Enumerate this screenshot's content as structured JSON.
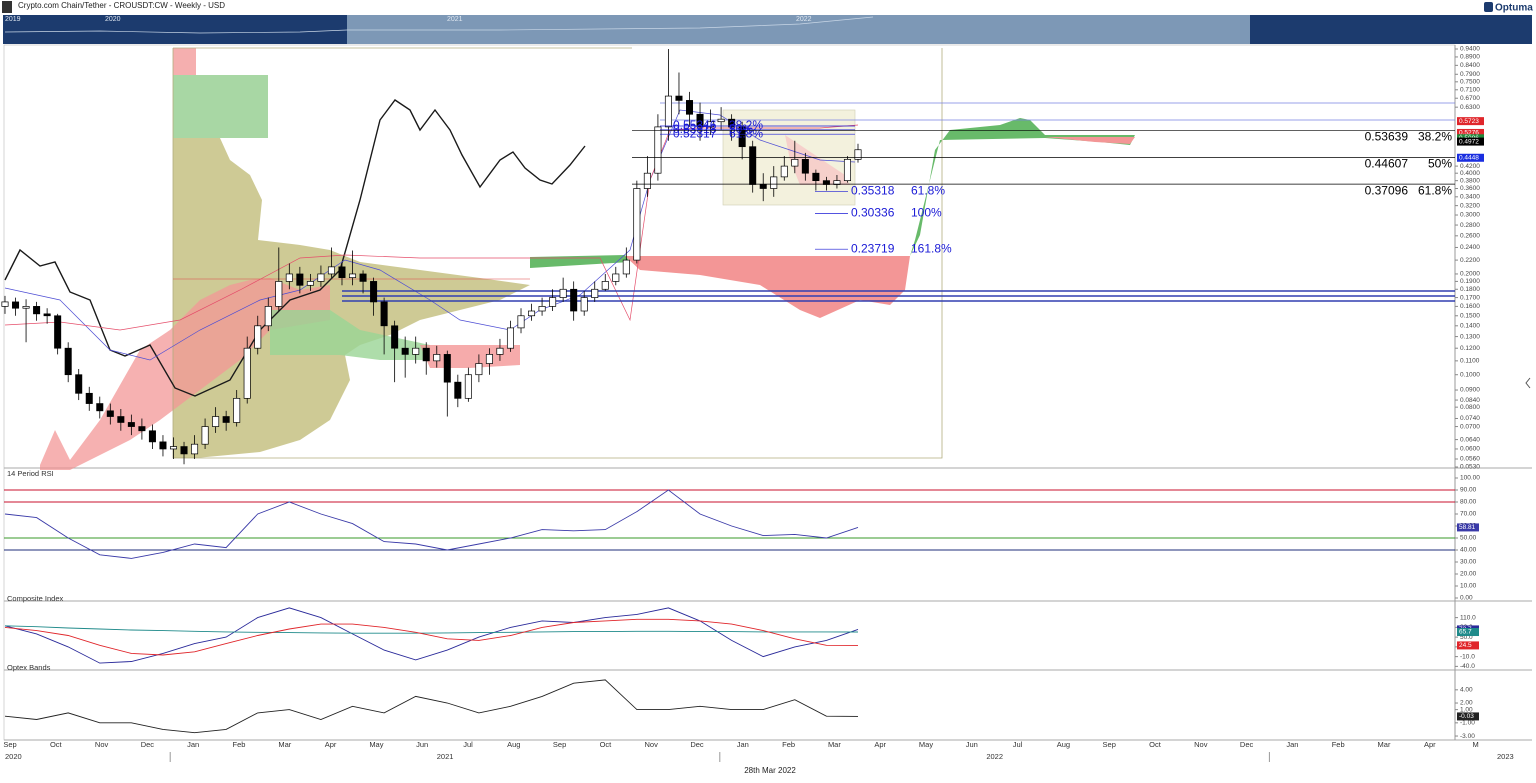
{
  "header": {
    "title": "Crypto.com Chain/Tether - CROUSDT:CW - Weekly - USD",
    "logo": "Optuma",
    "navigator_years": [
      "2019",
      "2020",
      "2021",
      "2022"
    ]
  },
  "chart_data": [
    {
      "type": "candlestick",
      "log_scale": true,
      "ylim": [
        0.053,
        0.94
      ],
      "up_color": "#ffffff",
      "down_color": "#000000",
      "outline_color": "#000000",
      "yticks": [
        {
          "value": 0.94,
          "label": "0.9400"
        },
        {
          "value": 0.89,
          "label": "0.8900"
        },
        {
          "value": 0.84,
          "label": "0.8400"
        },
        {
          "value": 0.79,
          "label": "0.7900"
        },
        {
          "value": 0.75,
          "label": "0.7500"
        },
        {
          "value": 0.71,
          "label": "0.7100"
        },
        {
          "value": 0.67,
          "label": "0.6700"
        },
        {
          "value": 0.63,
          "label": "0.6300"
        },
        {
          "value": 0.42,
          "label": "0.4200"
        },
        {
          "value": 0.4,
          "label": "0.4000"
        },
        {
          "value": 0.38,
          "label": "0.3800"
        },
        {
          "value": 0.36,
          "label": "0.3600"
        },
        {
          "value": 0.34,
          "label": "0.3400"
        },
        {
          "value": 0.32,
          "label": "0.3200"
        },
        {
          "value": 0.3,
          "label": "0.3000"
        },
        {
          "value": 0.28,
          "label": "0.2800"
        },
        {
          "value": 0.26,
          "label": "0.2600"
        },
        {
          "value": 0.24,
          "label": "0.2400"
        },
        {
          "value": 0.22,
          "label": "0.2200"
        },
        {
          "value": 0.2,
          "label": "0.2000"
        },
        {
          "value": 0.19,
          "label": "0.1900"
        },
        {
          "value": 0.18,
          "label": "0.1800"
        },
        {
          "value": 0.17,
          "label": "0.1700"
        },
        {
          "value": 0.16,
          "label": "0.1600"
        },
        {
          "value": 0.15,
          "label": "0.1500"
        },
        {
          "value": 0.14,
          "label": "0.1400"
        },
        {
          "value": 0.13,
          "label": "0.1300"
        },
        {
          "value": 0.12,
          "label": "0.1200"
        },
        {
          "value": 0.11,
          "label": "0.1100"
        },
        {
          "value": 0.1,
          "label": "0.1000"
        },
        {
          "value": 0.09,
          "label": "0.0900"
        },
        {
          "value": 0.084,
          "label": "0.0840"
        },
        {
          "value": 0.08,
          "label": "0.0800"
        },
        {
          "value": 0.074,
          "label": "0.0740"
        },
        {
          "value": 0.07,
          "label": "0.0700"
        },
        {
          "value": 0.064,
          "label": "0.0640"
        },
        {
          "value": 0.06,
          "label": "0.0600"
        },
        {
          "value": 0.056,
          "label": "0.0560"
        },
        {
          "value": 0.053,
          "label": "0.0530"
        }
      ],
      "open": [
        0.16,
        0.165,
        0.158,
        0.16,
        0.152,
        0.15,
        0.12,
        0.1,
        0.088,
        0.082,
        0.078,
        0.075,
        0.072,
        0.07,
        0.068,
        0.063,
        0.06,
        0.061,
        0.058,
        0.062,
        0.07,
        0.075,
        0.072,
        0.085,
        0.12,
        0.14,
        0.16,
        0.19,
        0.2,
        0.185,
        0.19,
        0.2,
        0.21,
        0.195,
        0.2,
        0.19,
        0.165,
        0.14,
        0.12,
        0.115,
        0.12,
        0.11,
        0.115,
        0.095,
        0.085,
        0.1,
        0.108,
        0.115,
        0.12,
        0.138,
        0.15,
        0.155,
        0.16,
        0.17,
        0.18,
        0.155,
        0.17,
        0.18,
        0.19,
        0.2,
        0.22,
        0.36,
        0.4,
        0.55,
        0.68,
        0.66,
        0.6,
        0.55,
        0.57,
        0.58,
        0.55,
        0.48,
        0.37,
        0.36,
        0.39,
        0.42,
        0.44,
        0.4,
        0.38,
        0.37,
        0.38,
        0.44
      ],
      "high": [
        0.172,
        0.17,
        0.168,
        0.165,
        0.158,
        0.152,
        0.125,
        0.104,
        0.092,
        0.086,
        0.082,
        0.079,
        0.076,
        0.074,
        0.071,
        0.066,
        0.065,
        0.063,
        0.066,
        0.074,
        0.08,
        0.078,
        0.09,
        0.13,
        0.15,
        0.17,
        0.24,
        0.215,
        0.21,
        0.2,
        0.212,
        0.24,
        0.215,
        0.235,
        0.205,
        0.195,
        0.17,
        0.145,
        0.13,
        0.13,
        0.125,
        0.122,
        0.118,
        0.1,
        0.105,
        0.115,
        0.12,
        0.128,
        0.145,
        0.158,
        0.163,
        0.17,
        0.18,
        0.195,
        0.19,
        0.178,
        0.19,
        0.2,
        0.21,
        0.24,
        0.38,
        0.45,
        0.6,
        0.94,
        0.8,
        0.7,
        0.65,
        0.62,
        0.63,
        0.6,
        0.57,
        0.5,
        0.4,
        0.42,
        0.45,
        0.5,
        0.46,
        0.41,
        0.39,
        0.395,
        0.45,
        0.49
      ],
      "low": [
        0.152,
        0.15,
        0.125,
        0.145,
        0.142,
        0.115,
        0.095,
        0.084,
        0.078,
        0.074,
        0.071,
        0.068,
        0.066,
        0.064,
        0.06,
        0.057,
        0.056,
        0.054,
        0.056,
        0.06,
        0.067,
        0.068,
        0.07,
        0.082,
        0.115,
        0.135,
        0.155,
        0.18,
        0.175,
        0.178,
        0.183,
        0.195,
        0.185,
        0.185,
        0.175,
        0.15,
        0.115,
        0.095,
        0.098,
        0.108,
        0.1,
        0.105,
        0.075,
        0.08,
        0.083,
        0.095,
        0.1,
        0.11,
        0.117,
        0.133,
        0.145,
        0.15,
        0.155,
        0.165,
        0.145,
        0.15,
        0.165,
        0.178,
        0.185,
        0.195,
        0.215,
        0.34,
        0.38,
        0.5,
        0.6,
        0.55,
        0.5,
        0.52,
        0.54,
        0.5,
        0.44,
        0.35,
        0.33,
        0.34,
        0.38,
        0.4,
        0.38,
        0.355,
        0.355,
        0.36,
        0.375,
        0.43
      ],
      "close": [
        0.165,
        0.158,
        0.16,
        0.152,
        0.15,
        0.12,
        0.1,
        0.088,
        0.082,
        0.078,
        0.075,
        0.072,
        0.07,
        0.068,
        0.063,
        0.06,
        0.061,
        0.058,
        0.062,
        0.07,
        0.075,
        0.072,
        0.085,
        0.12,
        0.14,
        0.16,
        0.19,
        0.2,
        0.185,
        0.19,
        0.2,
        0.21,
        0.195,
        0.2,
        0.19,
        0.165,
        0.14,
        0.12,
        0.115,
        0.12,
        0.11,
        0.115,
        0.095,
        0.085,
        0.1,
        0.108,
        0.115,
        0.12,
        0.138,
        0.15,
        0.155,
        0.16,
        0.17,
        0.18,
        0.155,
        0.17,
        0.18,
        0.19,
        0.2,
        0.22,
        0.36,
        0.4,
        0.55,
        0.68,
        0.66,
        0.6,
        0.55,
        0.57,
        0.58,
        0.55,
        0.48,
        0.37,
        0.36,
        0.39,
        0.42,
        0.44,
        0.4,
        0.38,
        0.37,
        0.38,
        0.44,
        0.47
      ],
      "price_tags": [
        {
          "value": 0.5723,
          "color": "#e0262b"
        },
        {
          "value": 0.5276,
          "color": "#e0262b"
        },
        {
          "value": 0.5086,
          "color": "#1e8a3a"
        },
        {
          "value": 0.4972,
          "color": "#000000"
        },
        {
          "value": 0.4448,
          "color": "#1a2ee0"
        }
      ],
      "fib_groups": [
        {
          "color": "#1a1ad6",
          "levels": [
            {
              "price": 0.55346,
              "ratio": "38.2%"
            },
            {
              "price": 0.53913,
              "ratio": "50%"
            },
            {
              "price": 0.52317,
              "ratio": "61.8%"
            }
          ]
        },
        {
          "color": "#1a1ad6",
          "levels": [
            {
              "price": 0.35318,
              "ratio": "61.8%"
            },
            {
              "price": 0.30336,
              "ratio": "100%"
            },
            {
              "price": 0.23719,
              "ratio": "161.8%"
            }
          ]
        },
        {
          "color": "#000000",
          "levels": [
            {
              "price": 0.53639,
              "ratio": "38.2%"
            },
            {
              "price": 0.44607,
              "ratio": "50%"
            },
            {
              "price": 0.37096,
              "ratio": "61.8%"
            }
          ]
        }
      ]
    },
    {
      "type": "line",
      "title": "14 Period RSI",
      "ylim": [
        0,
        100
      ],
      "yticks": [
        {
          "value": 100,
          "label": "100.00"
        },
        {
          "value": 90,
          "label": "90.00"
        },
        {
          "value": 80,
          "label": "80.00"
        },
        {
          "value": 70,
          "label": "70.00"
        },
        {
          "value": 60,
          "label": "60.00"
        },
        {
          "value": 50,
          "label": "50.00"
        },
        {
          "value": 40,
          "label": "40.00"
        },
        {
          "value": 30,
          "label": "30.00"
        },
        {
          "value": 20,
          "label": "20.00"
        },
        {
          "value": 10,
          "label": "10.00"
        },
        {
          "value": 0,
          "label": "0.00"
        }
      ],
      "levels": [
        {
          "value": 90,
          "color": "#c8102e"
        },
        {
          "value": 80,
          "color": "#c8102e"
        },
        {
          "value": 50,
          "color": "#3a9a2a"
        },
        {
          "value": 40,
          "color": "#1f2d7a"
        }
      ],
      "series": [
        {
          "color": "#3a3aa8",
          "values": [
            70,
            67,
            50,
            36,
            33,
            38,
            45,
            42,
            70,
            80,
            70,
            62,
            47,
            45,
            40,
            45,
            50,
            57,
            56,
            57,
            72,
            90,
            70,
            60,
            52,
            53,
            50,
            58.81
          ]
        }
      ]
    },
    {
      "type": "line",
      "title": "Composite Index",
      "ylim": [
        -45,
        155
      ],
      "yticks": [
        {
          "value": 110,
          "label": "110.0"
        },
        {
          "value": 80,
          "label": "80.0"
        },
        {
          "value": 50,
          "label": "50.0"
        },
        {
          "value": 20,
          "label": "20.0"
        },
        {
          "value": -10,
          "label": "-10.0"
        },
        {
          "value": -40,
          "label": "-40.0"
        }
      ],
      "series": [
        {
          "color": "#2a2a9a",
          "values": [
            85,
            60,
            20,
            -30,
            -25,
            0,
            30,
            50,
            110,
            140,
            110,
            60,
            10,
            -20,
            10,
            50,
            80,
            100,
            95,
            110,
            120,
            140,
            100,
            40,
            -10,
            20,
            40,
            73.7
          ]
        },
        {
          "color": "#1f8a8a",
          "values": [
            85,
            82,
            78,
            75,
            72,
            70,
            68,
            66,
            65,
            64,
            63,
            62,
            62,
            62,
            63,
            64,
            65,
            66,
            67,
            67,
            68,
            68,
            67,
            67,
            66,
            66,
            66,
            65.7
          ]
        },
        {
          "color": "#e0262b",
          "values": [
            80,
            70,
            55,
            25,
            0,
            -5,
            5,
            30,
            55,
            75,
            90,
            90,
            80,
            65,
            45,
            40,
            55,
            80,
            95,
            100,
            105,
            105,
            100,
            90,
            70,
            45,
            25,
            24.5
          ]
        }
      ]
    },
    {
      "type": "line",
      "title": "Optex Bands",
      "ylim": [
        -3.6,
        6.7
      ],
      "yticks": [
        {
          "value": 4,
          "label": "4.00"
        },
        {
          "value": 2,
          "label": "2.00"
        },
        {
          "value": 1,
          "label": "1.00"
        },
        {
          "value": -1,
          "label": "-1.00"
        },
        {
          "value": -3,
          "label": "-3.00"
        }
      ],
      "series": [
        {
          "color": "#222222",
          "values": [
            0,
            -0.5,
            0.5,
            -1,
            -1,
            -2,
            -2.5,
            -2,
            0.5,
            1,
            -0.5,
            1.5,
            0.5,
            3,
            2,
            0.5,
            1.5,
            3,
            5,
            5.5,
            1,
            1,
            1.5,
            1,
            1,
            2.5,
            0,
            -0.03
          ]
        }
      ]
    }
  ],
  "time_axis": {
    "cursor_date": "28th Mar 2022",
    "years": [
      {
        "label": "2020",
        "months": [
          "Sep",
          "Oct",
          "Nov",
          "Dec"
        ]
      },
      {
        "label": "2021",
        "months": [
          "Jan",
          "Feb",
          "Mar",
          "Apr",
          "May",
          "Jun",
          "Jul",
          "Aug",
          "Sep",
          "Oct",
          "Nov",
          "Dec"
        ]
      },
      {
        "label": "2022",
        "months": [
          "Jan",
          "Feb",
          "Mar",
          "Apr",
          "May",
          "Jun",
          "Jul",
          "Aug",
          "Sep",
          "Oct",
          "Nov",
          "Dec"
        ]
      },
      {
        "label": "2023",
        "months": [
          "Jan",
          "Feb",
          "Mar",
          "Apr",
          "M"
        ]
      }
    ]
  }
}
